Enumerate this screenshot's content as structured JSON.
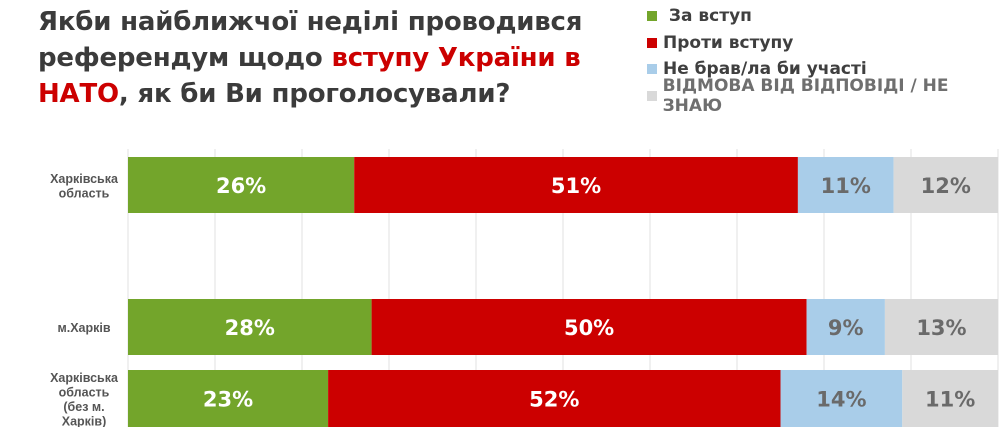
{
  "title": {
    "line1": [
      {
        "text": "Якби найближчої неділі проводився",
        "highlight": false
      }
    ],
    "line2": [
      {
        "text": "референдум щодо ",
        "highlight": false
      },
      {
        "text": "вступу України в",
        "highlight": true
      }
    ],
    "line3": [
      {
        "text": "НАТО",
        "highlight": true
      },
      {
        "text": ", як би Ви проголосували?",
        "highlight": false
      }
    ]
  },
  "colors": {
    "title_highlight": "#cc0000",
    "gridline": "#e2e2e2"
  },
  "chart_data": {
    "type": "bar",
    "orientation": "horizontal",
    "stacked": true,
    "xlim": [
      0,
      100
    ],
    "grid": true,
    "legend_position": "top-right",
    "categories": [
      "Харківська область",
      "м.Харків",
      "Харківська область (без м. Харків)"
    ],
    "category_lines": [
      [
        "Харківська",
        "область"
      ],
      [
        "м.Харків"
      ],
      [
        "Харківська",
        "область",
        "(без м.",
        "Харків)"
      ]
    ],
    "series": [
      {
        "name": "За вступ",
        "color": "#73a52b",
        "label_color": "#ffffff",
        "values": [
          26,
          28,
          23
        ]
      },
      {
        "name": "Проти вступу",
        "color": "#cc0000",
        "label_color": "#ffffff",
        "values": [
          51,
          50,
          52
        ]
      },
      {
        "name": "Не брав/ла би участі",
        "color": "#a9cde9",
        "label_color": "#6a6a6a",
        "values": [
          11,
          9,
          14
        ]
      },
      {
        "name": "ВІДМОВА ВІД ВІДПОВІДІ / НЕ ЗНАЮ",
        "color": "#d9d9d9",
        "label_color": "#6a6a6a",
        "values": [
          12,
          13,
          11
        ]
      }
    ],
    "value_suffix": "%"
  }
}
